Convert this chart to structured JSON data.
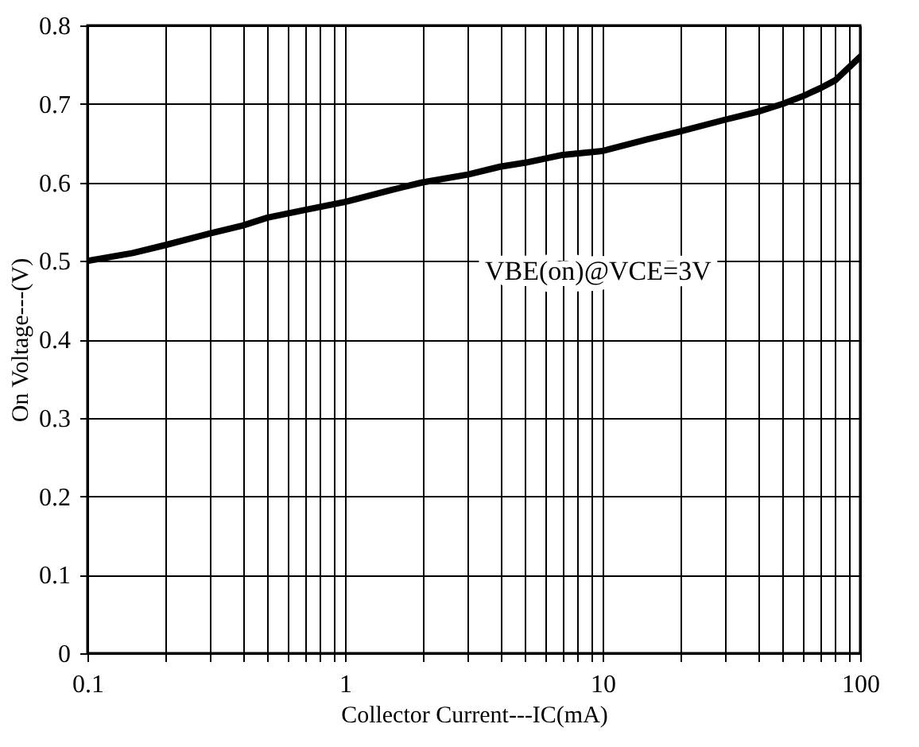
{
  "chart_data": {
    "type": "line",
    "xlabel": "Collector Current---IC(mA)",
    "ylabel": "On Voltage---(V)",
    "x": [
      0.1,
      0.15,
      0.2,
      0.3,
      0.4,
      0.5,
      0.7,
      1,
      1.5,
      2,
      3,
      4,
      5,
      7,
      10,
      15,
      20,
      30,
      40,
      50,
      60,
      70,
      80,
      100
    ],
    "series": [
      {
        "color": "#000000",
        "values": [
          0.5,
          0.51,
          0.52,
          0.535,
          0.545,
          0.555,
          0.565,
          0.575,
          0.59,
          0.6,
          0.61,
          0.62,
          0.625,
          0.635,
          0.64,
          0.655,
          0.665,
          0.68,
          0.69,
          0.7,
          0.71,
          0.72,
          0.73,
          0.76
        ]
      }
    ],
    "xlim": [
      0.1,
      100
    ],
    "ylim": [
      0,
      0.8
    ],
    "xticks": [
      0.1,
      {
        "value": 0.2,
        "label": null
      },
      {
        "value": 0.3,
        "label": null
      },
      {
        "value": 0.4,
        "label": null
      },
      {
        "value": 0.5,
        "label": null
      },
      {
        "value": 0.6,
        "label": null
      },
      {
        "value": 0.7,
        "label": null
      },
      {
        "value": 0.8,
        "label": null
      },
      {
        "value": 0.9,
        "label": null
      },
      1,
      {
        "value": 2,
        "label": null
      },
      {
        "value": 3,
        "label": null
      },
      {
        "value": 4,
        "label": null
      },
      {
        "value": 5,
        "label": null
      },
      {
        "value": 6,
        "label": null
      },
      {
        "value": 7,
        "label": null
      },
      {
        "value": 8,
        "label": null
      },
      {
        "value": 9,
        "label": null
      },
      10,
      {
        "value": 20,
        "label": null
      },
      {
        "value": 30,
        "label": null
      },
      {
        "value": 40,
        "label": null
      },
      {
        "value": 50,
        "label": null
      },
      {
        "value": 60,
        "label": null
      },
      {
        "value": 70,
        "label": null
      },
      {
        "value": 80,
        "label": null
      },
      {
        "value": 90,
        "label": null
      },
      100
    ],
    "yticks": [
      0,
      0.1,
      0.2,
      0.3,
      0.4,
      0.5,
      0.6,
      0.7,
      0.8
    ],
    "log": "x",
    "grid": true,
    "line_style": "solid",
    "marker": "none",
    "annotations": [
      "VBE(on)@VCE=3V"
    ]
  }
}
